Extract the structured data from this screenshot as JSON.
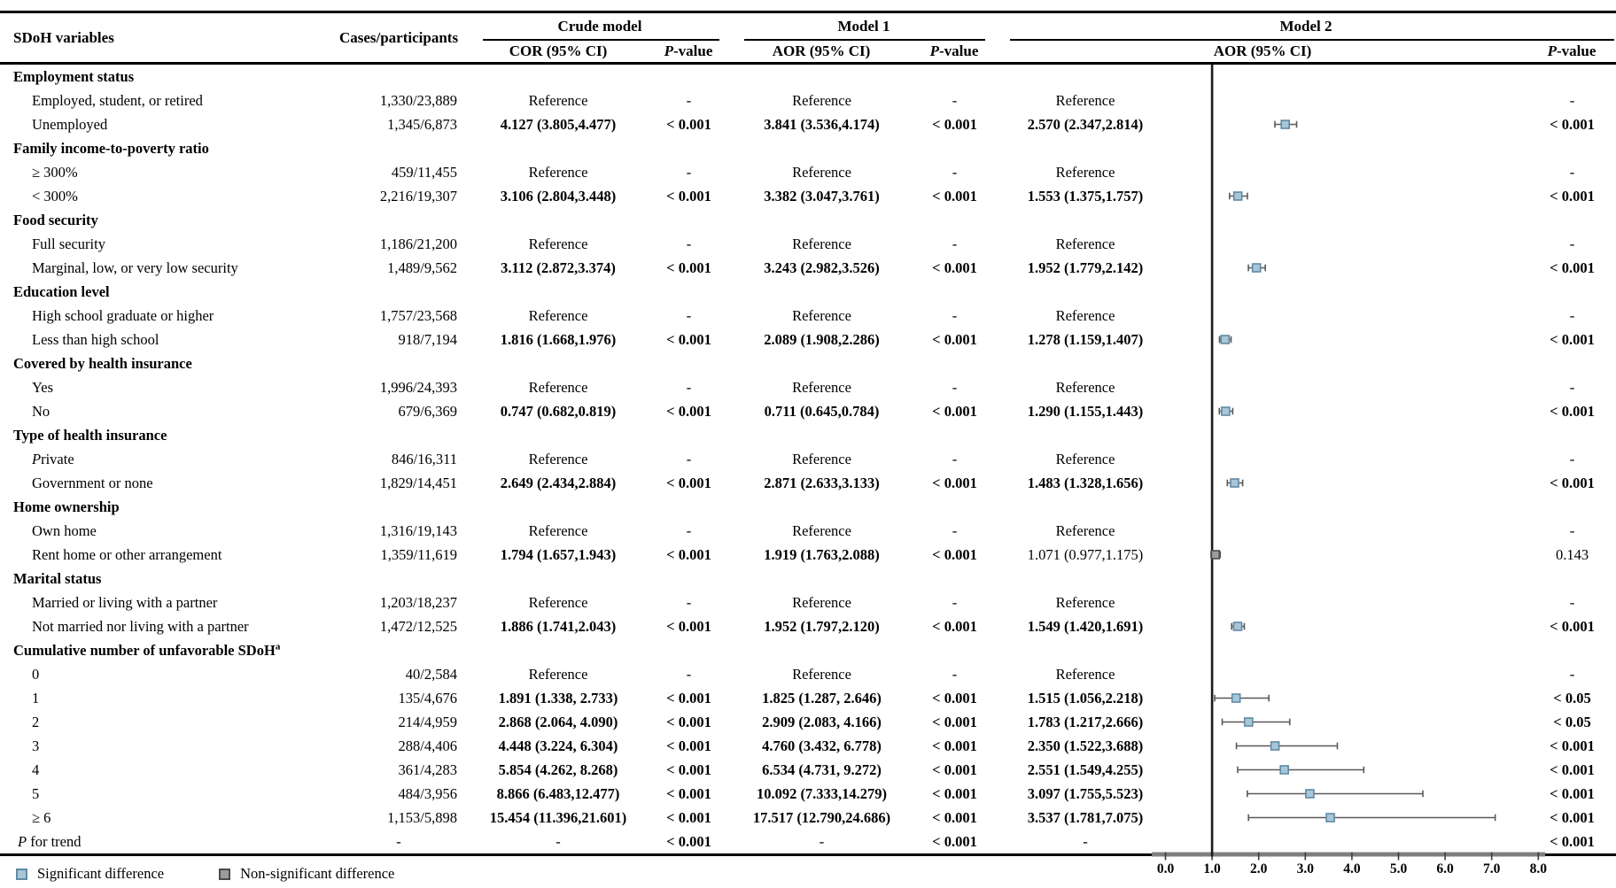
{
  "header": {
    "variables": "SDoH variables",
    "cases": "Cases/participants",
    "models": [
      {
        "label": "Crude model",
        "sub": [
          "COR (95% CI)",
          "P-value"
        ]
      },
      {
        "label": "Model 1",
        "sub": [
          "AOR (95% CI)",
          "P-value"
        ]
      },
      {
        "label": "Model 2",
        "sub": [
          "AOR (95% CI)",
          "P-value"
        ]
      }
    ]
  },
  "rows": [
    {
      "type": "group",
      "label": "Employment status"
    },
    {
      "type": "data",
      "label": "Employed, student, or retired",
      "cases": "1,330/23,889",
      "cor": "Reference",
      "cor_p": "-",
      "aor1": "Reference",
      "aor1_p": "-",
      "aor2": "Reference",
      "aor2_p": "-",
      "b1": false,
      "b2": false
    },
    {
      "type": "data",
      "label": "Unemployed",
      "cases": "1,345/6,873",
      "cor": "4.127 (3.805,4.477)",
      "cor_p": "< 0.001",
      "aor1": "3.841 (3.536,4.174)",
      "aor1_p": "< 0.001",
      "aor2": "2.570 (2.347,2.814)",
      "aor2_p": "< 0.001",
      "b1": true,
      "b2": true,
      "forest": {
        "est": 2.57,
        "lo": 2.347,
        "hi": 2.814,
        "significant": true
      }
    },
    {
      "type": "group",
      "label": "Family income-to-poverty ratio"
    },
    {
      "type": "data",
      "label": "≥ 300%",
      "cases": "459/11,455",
      "cor": "Reference",
      "cor_p": "-",
      "aor1": "Reference",
      "aor1_p": "-",
      "aor2": "Reference",
      "aor2_p": "-",
      "b1": false,
      "b2": false
    },
    {
      "type": "data",
      "label": "< 300%",
      "cases": "2,216/19,307",
      "cor": "3.106 (2.804,3.448)",
      "cor_p": "< 0.001",
      "aor1": "3.382 (3.047,3.761)",
      "aor1_p": "< 0.001",
      "aor2": "1.553 (1.375,1.757)",
      "aor2_p": "< 0.001",
      "b1": true,
      "b2": true,
      "forest": {
        "est": 1.553,
        "lo": 1.375,
        "hi": 1.757,
        "significant": true
      }
    },
    {
      "type": "group",
      "label": "Food security"
    },
    {
      "type": "data",
      "label": "Full security",
      "cases": "1,186/21,200",
      "cor": "Reference",
      "cor_p": "-",
      "aor1": "Reference",
      "aor1_p": "-",
      "aor2": "Reference",
      "aor2_p": "-",
      "b1": false,
      "b2": false
    },
    {
      "type": "data",
      "label": "Marginal, low, or very low security",
      "cases": "1,489/9,562",
      "cor": "3.112 (2.872,3.374)",
      "cor_p": "< 0.001",
      "aor1": "3.243 (2.982,3.526)",
      "aor1_p": "< 0.001",
      "aor2": "1.952 (1.779,2.142)",
      "aor2_p": "< 0.001",
      "b1": true,
      "b2": true,
      "forest": {
        "est": 1.952,
        "lo": 1.779,
        "hi": 2.142,
        "significant": true
      }
    },
    {
      "type": "group",
      "label": "Education level"
    },
    {
      "type": "data",
      "label": "High school graduate or higher",
      "cases": "1,757/23,568",
      "cor": "Reference",
      "cor_p": "-",
      "aor1": "Reference",
      "aor1_p": "-",
      "aor2": "Reference",
      "aor2_p": "-",
      "b1": false,
      "b2": false
    },
    {
      "type": "data",
      "label": "Less than high school",
      "cases": "918/7,194",
      "cor": "1.816 (1.668,1.976)",
      "cor_p": "< 0.001",
      "aor1": "2.089 (1.908,2.286)",
      "aor1_p": "< 0.001",
      "aor2": "1.278 (1.159,1.407)",
      "aor2_p": "< 0.001",
      "b1": true,
      "b2": true,
      "forest": {
        "est": 1.278,
        "lo": 1.159,
        "hi": 1.407,
        "significant": true
      }
    },
    {
      "type": "group",
      "label": "Covered by health insurance"
    },
    {
      "type": "data",
      "label": "Yes",
      "cases": "1,996/24,393",
      "cor": "Reference",
      "cor_p": "-",
      "aor1": "Reference",
      "aor1_p": "-",
      "aor2": "Reference",
      "aor2_p": "-",
      "b1": false,
      "b2": false
    },
    {
      "type": "data",
      "label": "No",
      "cases": "679/6,369",
      "cor": "0.747 (0.682,0.819)",
      "cor_p": "< 0.001",
      "aor1": "0.711 (0.645,0.784)",
      "aor1_p": "< 0.001",
      "aor2": "1.290 (1.155,1.443)",
      "aor2_p": "< 0.001",
      "b1": true,
      "b2": true,
      "forest": {
        "est": 1.29,
        "lo": 1.155,
        "hi": 1.443,
        "significant": true
      }
    },
    {
      "type": "group",
      "label": "Type of health insurance"
    },
    {
      "type": "data",
      "label": "Private",
      "cases": "846/16,311",
      "cor": "Reference",
      "cor_p": "-",
      "aor1": "Reference",
      "aor1_p": "-",
      "aor2": "Reference",
      "aor2_p": "-",
      "b1": false,
      "b2": false
    },
    {
      "type": "data",
      "label": "Government or none",
      "cases": "1,829/14,451",
      "cor": "2.649 (2.434,2.884)",
      "cor_p": "< 0.001",
      "aor1": "2.871 (2.633,3.133)",
      "aor1_p": "< 0.001",
      "aor2": "1.483 (1.328,1.656)",
      "aor2_p": "< 0.001",
      "b1": true,
      "b2": true,
      "forest": {
        "est": 1.483,
        "lo": 1.328,
        "hi": 1.656,
        "significant": true
      }
    },
    {
      "type": "group",
      "label": "Home ownership"
    },
    {
      "type": "data",
      "label": "Own home",
      "cases": "1,316/19,143",
      "cor": "Reference",
      "cor_p": "-",
      "aor1": "Reference",
      "aor1_p": "-",
      "aor2": "Reference",
      "aor2_p": "-",
      "b1": false,
      "b2": false
    },
    {
      "type": "data",
      "label": "Rent home or other arrangement",
      "cases": "1,359/11,619",
      "cor": "1.794 (1.657,1.943)",
      "cor_p": "< 0.001",
      "aor1": "1.919 (1.763,2.088)",
      "aor1_p": "< 0.001",
      "aor2": "1.071 (0.977,1.175)",
      "aor2_p": "0.143",
      "b1": true,
      "b2": false,
      "forest": {
        "est": 1.071,
        "lo": 0.977,
        "hi": 1.175,
        "significant": false
      }
    },
    {
      "type": "group",
      "label": "Marital status"
    },
    {
      "type": "data",
      "label": "Married or living with a partner",
      "cases": "1,203/18,237",
      "cor": "Reference",
      "cor_p": "-",
      "aor1": "Reference",
      "aor1_p": "-",
      "aor2": "Reference",
      "aor2_p": "-",
      "b1": false,
      "b2": false
    },
    {
      "type": "data",
      "label": "Not married nor living with a partner",
      "cases": "1,472/12,525",
      "cor": "1.886 (1.741,2.043)",
      "cor_p": "< 0.001",
      "aor1": "1.952 (1.797,2.120)",
      "aor1_p": "< 0.001",
      "aor2": "1.549 (1.420,1.691)",
      "aor2_p": "< 0.001",
      "b1": true,
      "b2": true,
      "forest": {
        "est": 1.549,
        "lo": 1.42,
        "hi": 1.691,
        "significant": true
      }
    },
    {
      "type": "group",
      "label": "Cumulative number of unfavorable SDoH",
      "sup": "a"
    },
    {
      "type": "data",
      "label": "0",
      "cases": "40/2,584",
      "cor": "Reference",
      "cor_p": "-",
      "aor1": "Reference",
      "aor1_p": "-",
      "aor2": "Reference",
      "aor2_p": "-",
      "b1": false,
      "b2": false
    },
    {
      "type": "data",
      "label": "1",
      "cases": "135/4,676",
      "cor": "1.891 (1.338, 2.733)",
      "cor_p": "< 0.001",
      "aor1": "1.825 (1.287, 2.646)",
      "aor1_p": "< 0.001",
      "aor2": "1.515 (1.056,2.218)",
      "aor2_p": "< 0.05",
      "b1": true,
      "b2": true,
      "forest": {
        "est": 1.515,
        "lo": 1.056,
        "hi": 2.218,
        "significant": true
      }
    },
    {
      "type": "data",
      "label": "2",
      "cases": "214/4,959",
      "cor": "2.868 (2.064, 4.090)",
      "cor_p": "< 0.001",
      "aor1": "2.909 (2.083, 4.166)",
      "aor1_p": "< 0.001",
      "aor2": "1.783 (1.217,2.666)",
      "aor2_p": "< 0.05",
      "b1": true,
      "b2": true,
      "forest": {
        "est": 1.783,
        "lo": 1.217,
        "hi": 2.666,
        "significant": true
      }
    },
    {
      "type": "data",
      "label": "3",
      "cases": "288/4,406",
      "cor": "4.448 (3.224, 6.304)",
      "cor_p": "< 0.001",
      "aor1": "4.760 (3.432, 6.778)",
      "aor1_p": "< 0.001",
      "aor2": "2.350 (1.522,3.688)",
      "aor2_p": "< 0.001",
      "b1": true,
      "b2": true,
      "forest": {
        "est": 2.35,
        "lo": 1.522,
        "hi": 3.688,
        "significant": true
      }
    },
    {
      "type": "data",
      "label": "4",
      "cases": "361/4,283",
      "cor": "5.854 (4.262, 8.268)",
      "cor_p": "< 0.001",
      "aor1": "6.534 (4.731, 9.272)",
      "aor1_p": "< 0.001",
      "aor2": "2.551 (1.549,4.255)",
      "aor2_p": "< 0.001",
      "b1": true,
      "b2": true,
      "forest": {
        "est": 2.551,
        "lo": 1.549,
        "hi": 4.255,
        "significant": true
      }
    },
    {
      "type": "data",
      "label": "5",
      "cases": "484/3,956",
      "cor": "8.866 (6.483,12.477)",
      "cor_p": "< 0.001",
      "aor1": "10.092 (7.333,14.279)",
      "aor1_p": "< 0.001",
      "aor2": "3.097 (1.755,5.523)",
      "aor2_p": "< 0.001",
      "b1": true,
      "b2": true,
      "forest": {
        "est": 3.097,
        "lo": 1.755,
        "hi": 5.523,
        "significant": true
      }
    },
    {
      "type": "data",
      "label": "≥ 6",
      "cases": "1,153/5,898",
      "cor": "15.454 (11.396,21.601)",
      "cor_p": "< 0.001",
      "aor1": "17.517 (12.790,24.686)",
      "aor1_p": "< 0.001",
      "aor2": "3.537 (1.781,7.075)",
      "aor2_p": "< 0.001",
      "b1": true,
      "b2": true,
      "forest": {
        "est": 3.537,
        "lo": 1.781,
        "hi": 7.075,
        "significant": true
      }
    },
    {
      "type": "ptrend",
      "label": "P for trend",
      "cases": "-",
      "cor": "-",
      "cor_p": "< 0.001",
      "aor1": "-",
      "aor1_p": "< 0.001",
      "aor2": "-",
      "aor2_p": "< 0.001",
      "b1": false,
      "b2": false
    }
  ],
  "forest_plot": {
    "axis_ticks": [
      "0.0",
      "1.0",
      "2.0",
      "3.0",
      "4.0",
      "5.0",
      "6.0",
      "7.0",
      "8.0"
    ],
    "axis_range": [
      0.0,
      8.0
    ],
    "reference_value": 1.0
  },
  "legend": {
    "significant": "Significant difference",
    "nonsignificant": "Non-significant difference"
  },
  "colors": {
    "significant_fill": "#a9c6d8",
    "significant_border": "#5f8aa5",
    "nonsignificant_fill": "#9c9c9c",
    "nonsignificant_border": "#4a4a4a",
    "whisker": "#595959",
    "reference_line": "#1a1a1a",
    "axis_bar": "#7f7f7f"
  },
  "chart_data": {
    "type": "scatter",
    "title": "Model 2 AOR (95% CI) forest plot",
    "xlabel": "",
    "x_ticks": [
      0.0,
      1.0,
      2.0,
      3.0,
      4.0,
      5.0,
      6.0,
      7.0,
      8.0
    ],
    "reference_line_x": 1.0,
    "points": [
      {
        "label": "Unemployed",
        "est": 2.57,
        "lo": 2.347,
        "hi": 2.814,
        "significant": true
      },
      {
        "label": "< 300%",
        "est": 1.553,
        "lo": 1.375,
        "hi": 1.757,
        "significant": true
      },
      {
        "label": "Marginal, low, or very low security",
        "est": 1.952,
        "lo": 1.779,
        "hi": 2.142,
        "significant": true
      },
      {
        "label": "Less than high school",
        "est": 1.278,
        "lo": 1.159,
        "hi": 1.407,
        "significant": true
      },
      {
        "label": "No (health insurance)",
        "est": 1.29,
        "lo": 1.155,
        "hi": 1.443,
        "significant": true
      },
      {
        "label": "Government or none",
        "est": 1.483,
        "lo": 1.328,
        "hi": 1.656,
        "significant": true
      },
      {
        "label": "Rent home or other arrangement",
        "est": 1.071,
        "lo": 0.977,
        "hi": 1.175,
        "significant": false
      },
      {
        "label": "Not married nor living with a partner",
        "est": 1.549,
        "lo": 1.42,
        "hi": 1.691,
        "significant": true
      },
      {
        "label": "Cumulative 1",
        "est": 1.515,
        "lo": 1.056,
        "hi": 2.218,
        "significant": true
      },
      {
        "label": "Cumulative 2",
        "est": 1.783,
        "lo": 1.217,
        "hi": 2.666,
        "significant": true
      },
      {
        "label": "Cumulative 3",
        "est": 2.35,
        "lo": 1.522,
        "hi": 3.688,
        "significant": true
      },
      {
        "label": "Cumulative 4",
        "est": 2.551,
        "lo": 1.549,
        "hi": 4.255,
        "significant": true
      },
      {
        "label": "Cumulative 5",
        "est": 3.097,
        "lo": 1.755,
        "hi": 5.523,
        "significant": true
      },
      {
        "label": "Cumulative ≥ 6",
        "est": 3.537,
        "lo": 1.781,
        "hi": 7.075,
        "significant": true
      }
    ]
  }
}
